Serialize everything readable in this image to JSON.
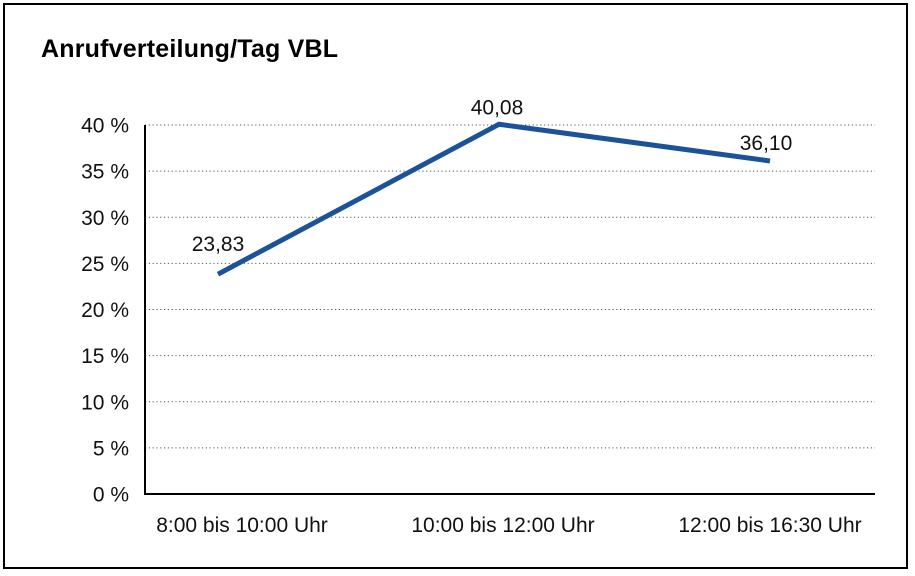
{
  "window": {
    "background": "#ffffff",
    "frame_border_color": "#000000"
  },
  "chart_data": {
    "type": "line",
    "title": "Anrufverteilung/Tag VBL",
    "categories": [
      "8:00 bis 10:00 Uhr",
      "10:00 bis 12:00 Uhr",
      "12:00 bis 16:30 Uhr"
    ],
    "series": [
      {
        "name": "Anrufverteilung/Tag VBL",
        "values": [
          23.83,
          40.08,
          36.1
        ],
        "value_labels": [
          "23,83",
          "40,08",
          "36,10"
        ],
        "color": "#1B5299"
      }
    ],
    "xlabel": "",
    "ylabel": "",
    "ylim": [
      0,
      40
    ],
    "y_tick_step": 5,
    "y_tick_labels": [
      "0 %",
      "5 %",
      "10 %",
      "15 %",
      "20 %",
      "25 %",
      "30 %",
      "35 %",
      "40 %"
    ],
    "grid": "horizontal-dotted",
    "grid_color": "#555555",
    "axis_color": "#000000",
    "text_color": "#111111",
    "legend": "none"
  }
}
